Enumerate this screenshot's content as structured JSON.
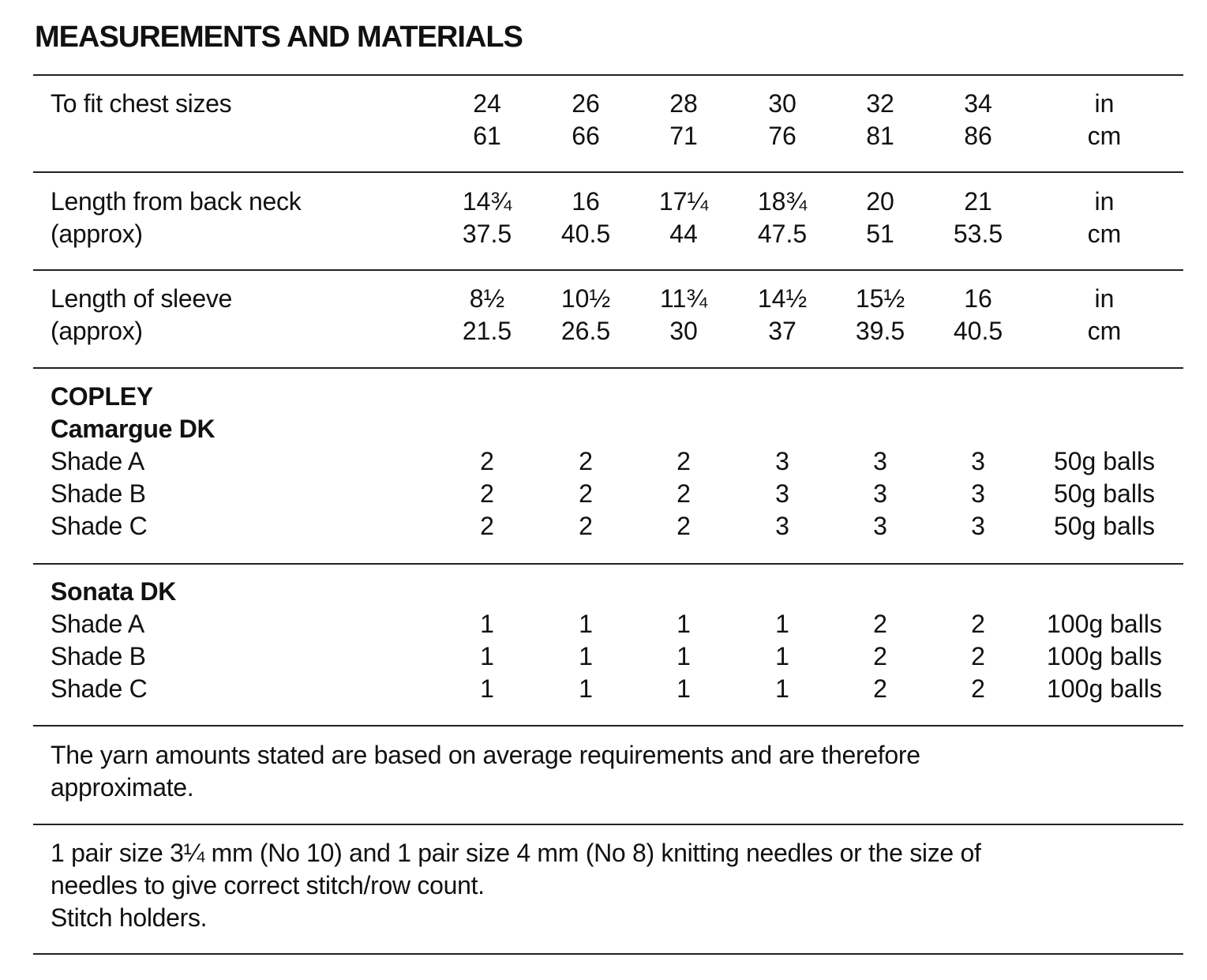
{
  "title": "MEASUREMENTS AND MATERIALS",
  "measurements": [
    {
      "label_lines": [
        "To fit chest sizes",
        ""
      ],
      "values_in": [
        "24",
        "26",
        "28",
        "30",
        "32",
        "34"
      ],
      "values_cm": [
        "61",
        "66",
        "71",
        "76",
        "81",
        "86"
      ],
      "unit_in": "in",
      "unit_cm": "cm"
    },
    {
      "label_lines": [
        "Length from back neck",
        "(approx)"
      ],
      "values_in": [
        "14¾",
        "16",
        "17¼",
        "18¾",
        "20",
        "21"
      ],
      "values_cm": [
        "37.5",
        "40.5",
        "44",
        "47.5",
        "51",
        "53.5"
      ],
      "unit_in": "in",
      "unit_cm": "cm"
    },
    {
      "label_lines": [
        "Length of sleeve",
        "(approx)"
      ],
      "values_in": [
        "8½",
        "10½",
        "11¾",
        "14½",
        "15½",
        "16"
      ],
      "values_cm": [
        "21.5",
        "26.5",
        "30",
        "37",
        "39.5",
        "40.5"
      ],
      "unit_in": "in",
      "unit_cm": "cm"
    }
  ],
  "yarns": [
    {
      "heading_lines": [
        "COPLEY",
        "Camargue DK"
      ],
      "shades": [
        {
          "label": "Shade A",
          "values": [
            "2",
            "2",
            "2",
            "3",
            "3",
            "3"
          ],
          "unit": "50g balls"
        },
        {
          "label": "Shade B",
          "values": [
            "2",
            "2",
            "2",
            "3",
            "3",
            "3"
          ],
          "unit": "50g balls"
        },
        {
          "label": "Shade C",
          "values": [
            "2",
            "2",
            "2",
            "3",
            "3",
            "3"
          ],
          "unit": "50g balls"
        }
      ]
    },
    {
      "heading_lines": [
        "Sonata DK"
      ],
      "shades": [
        {
          "label": "Shade A",
          "values": [
            "1",
            "1",
            "1",
            "1",
            "2",
            "2"
          ],
          "unit": "100g balls"
        },
        {
          "label": "Shade B",
          "values": [
            "1",
            "1",
            "1",
            "1",
            "2",
            "2"
          ],
          "unit": "100g balls"
        },
        {
          "label": "Shade C",
          "values": [
            "1",
            "1",
            "1",
            "1",
            "2",
            "2"
          ],
          "unit": "100g balls"
        }
      ]
    }
  ],
  "yarn_note_lines": [
    "The yarn amounts stated are based on average requirements and are therefore",
    "approximate."
  ],
  "needles_lines": [
    "1 pair size 3¼ mm (No 10) and 1 pair size 4 mm (No 8) knitting needles or the size of",
    "needles to give correct stitch/row count.",
    "Stitch holders."
  ]
}
